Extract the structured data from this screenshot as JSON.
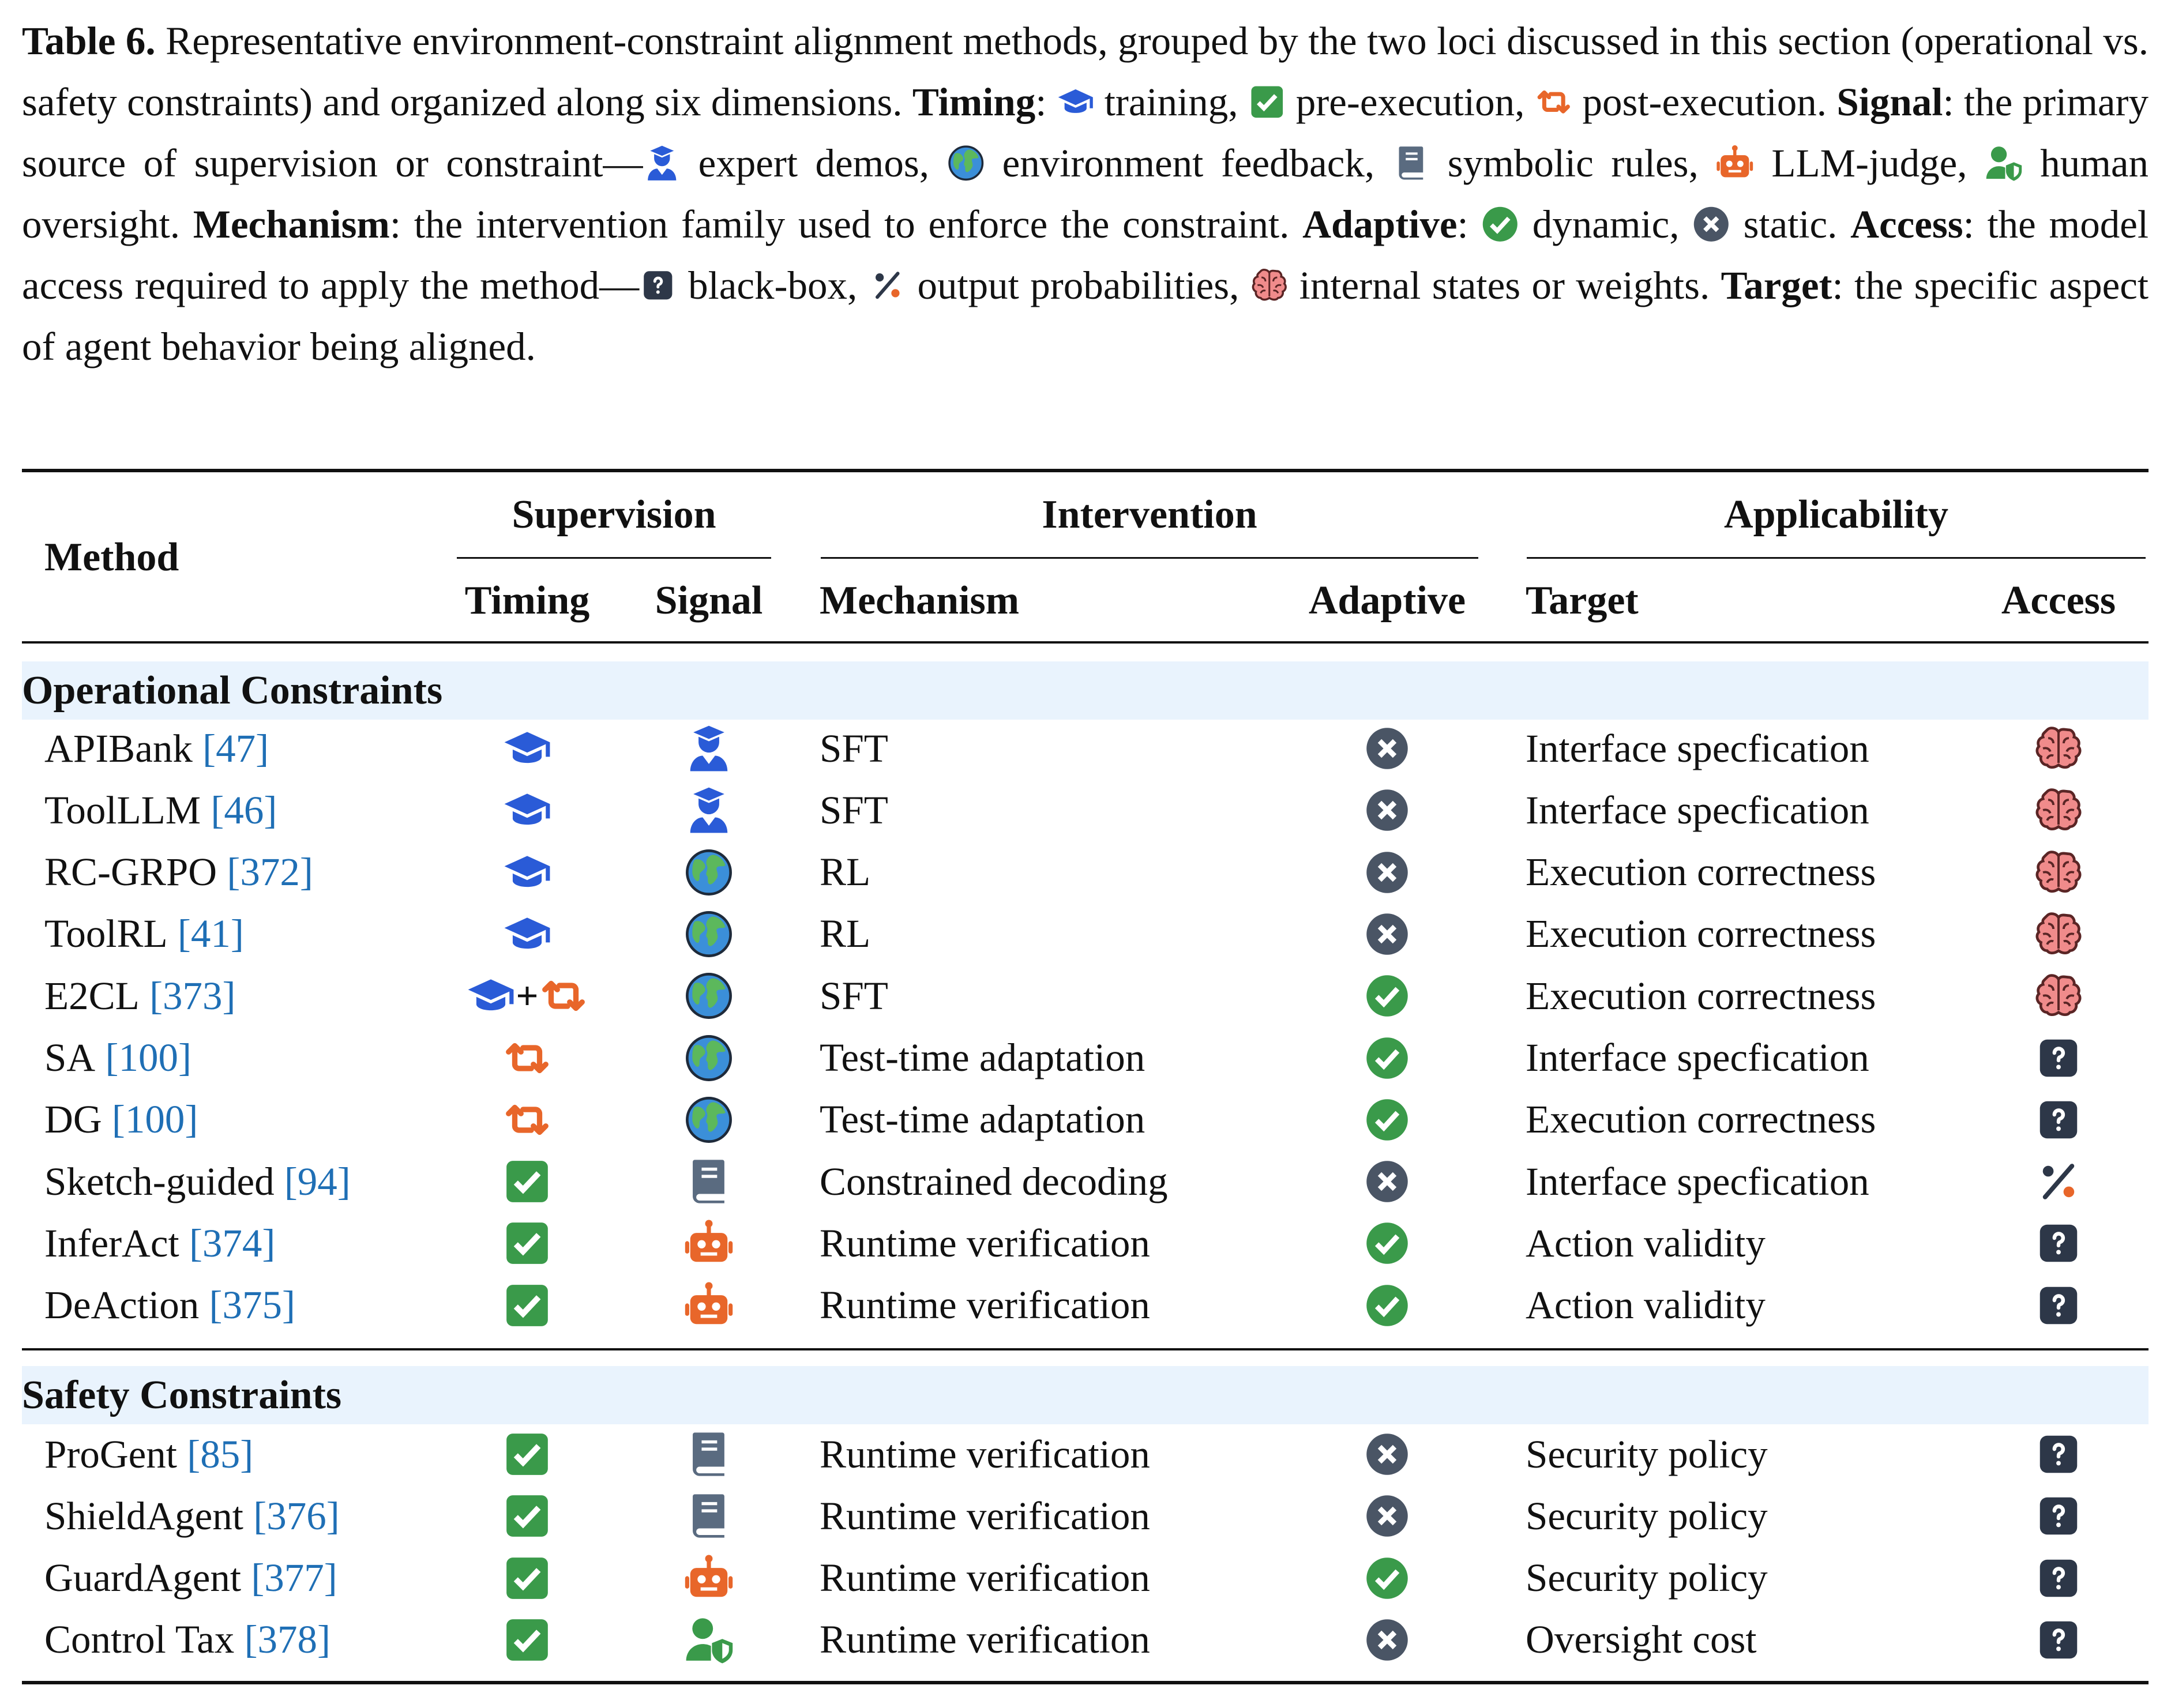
{
  "caption": {
    "parts": [
      "Table 6.",
      " Representative environment-constraint alignment methods, grouped by the two loci discussed in this section (operational vs. safety constraints) and organized along six dimensions. ",
      "Timing",
      ": ",
      " training, ",
      " pre-execution, ",
      " post-execution. ",
      "Signal",
      ": the primary source of supervision or constraint—",
      " expert demos, ",
      " environment feedback, ",
      " symbolic rules, ",
      " LLM-judge, ",
      " human oversight. ",
      "Mechanism",
      ": the intervention family used to enforce the constraint. ",
      "Adaptive",
      ": ",
      " dynamic, ",
      " static. ",
      "Access",
      ": the model access required to apply the method—",
      " black-box, ",
      " output probabilities, ",
      " internal states or weights. ",
      "Target",
      ": the specific aspect of agent behavior being aligned."
    ]
  },
  "table": {
    "group_headers": [
      "Method",
      "Supervision",
      "Intervention",
      "Applicability"
    ],
    "sub_headers": [
      "Timing",
      "Signal",
      "Mechanism",
      "Adaptive",
      "Target",
      "Access"
    ],
    "sections": [
      {
        "title": "Operational Constraints",
        "rows": [
          {
            "method": "APIBank",
            "ref": "[47]",
            "mechanism": "SFT",
            "target": "Interface specfication"
          },
          {
            "method": "ToolLLM",
            "ref": "[46]",
            "mechanism": "SFT",
            "target": "Interface specfication"
          },
          {
            "method": "RC-GRPO",
            "ref": "[372]",
            "mechanism": "RL",
            "target": "Execution correctness"
          },
          {
            "method": "ToolRL",
            "ref": "[41]",
            "mechanism": "RL",
            "target": "Execution correctness"
          },
          {
            "method": "E2CL",
            "ref": "[373]",
            "mechanism": "SFT",
            "target": "Execution correctness"
          },
          {
            "method": "SA",
            "ref": "[100]",
            "mechanism": "Test-time adaptation",
            "target": "Interface specfication"
          },
          {
            "method": "DG",
            "ref": "[100]",
            "mechanism": "Test-time adaptation",
            "target": "Execution correctness"
          },
          {
            "method": "Sketch-guided",
            "ref": "[94]",
            "mechanism": "Constrained decoding",
            "target": "Interface specfication"
          },
          {
            "method": "InferAct",
            "ref": "[374]",
            "mechanism": "Runtime verification",
            "target": "Action validity"
          },
          {
            "method": "DeAction",
            "ref": "[375]",
            "mechanism": "Runtime verification",
            "target": "Action validity"
          }
        ]
      },
      {
        "title": "Safety Constraints",
        "rows": [
          {
            "method": "ProGent",
            "ref": "[85]",
            "mechanism": "Runtime verification",
            "target": "Security policy"
          },
          {
            "method": "ShieldAgent",
            "ref": "[376]",
            "mechanism": "Runtime verification",
            "target": "Security policy"
          },
          {
            "method": "GuardAgent",
            "ref": "[377]",
            "mechanism": "Runtime verification",
            "target": "Security policy"
          },
          {
            "method": "Control Tax",
            "ref": "[378]",
            "mechanism": "Runtime verification",
            "target": "Oversight cost"
          }
        ]
      }
    ]
  }
}
